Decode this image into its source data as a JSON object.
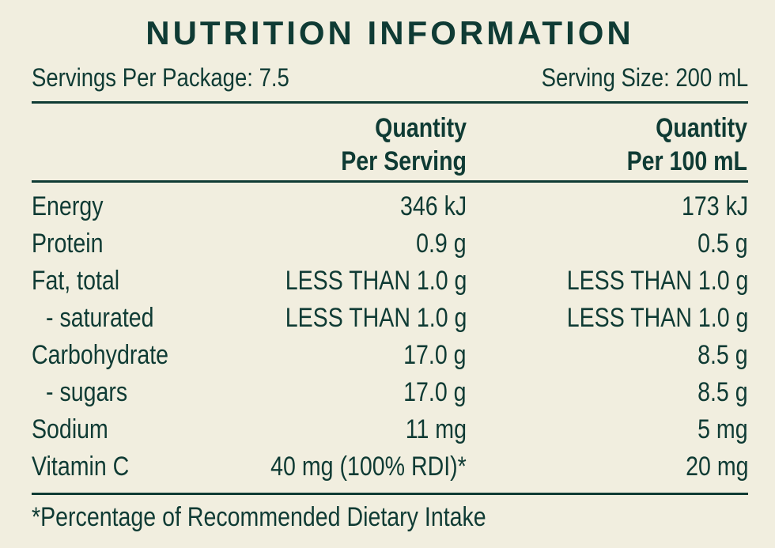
{
  "title": "NUTRITION INFORMATION",
  "servings_per_package": "Servings Per Package: 7.5",
  "serving_size": "Serving Size: 200 mL",
  "headers": {
    "per_serving_line1": "Quantity",
    "per_serving_line2": "Per Serving",
    "per_100_line1": "Quantity",
    "per_100_line2": "Per 100 mL"
  },
  "rows": [
    {
      "label": "Energy",
      "per_serving": "346 kJ",
      "per_100": "173 kJ"
    },
    {
      "label": "Protein",
      "per_serving": "0.9 g",
      "per_100": "0.5 g"
    },
    {
      "label": "Fat, total",
      "per_serving": "LESS THAN 1.0 g",
      "per_100": "LESS THAN 1.0 g"
    },
    {
      "label": "- saturated",
      "per_serving": "LESS THAN 1.0 g",
      "per_100": "LESS THAN 1.0 g"
    },
    {
      "label": "Carbohydrate",
      "per_serving": "17.0 g",
      "per_100": "8.5 g"
    },
    {
      "label": "- sugars",
      "per_serving": "17.0 g",
      "per_100": "8.5 g"
    },
    {
      "label": "Sodium",
      "per_serving": "11 mg",
      "per_100": "5 mg"
    },
    {
      "label": "Vitamin C",
      "per_serving": "40 mg (100% RDI)*",
      "per_100": "20 mg"
    }
  ],
  "footnote": "*Percentage of Recommended Dietary Intake",
  "colors": {
    "background": "#f1eedf",
    "text": "#0f3b34"
  }
}
